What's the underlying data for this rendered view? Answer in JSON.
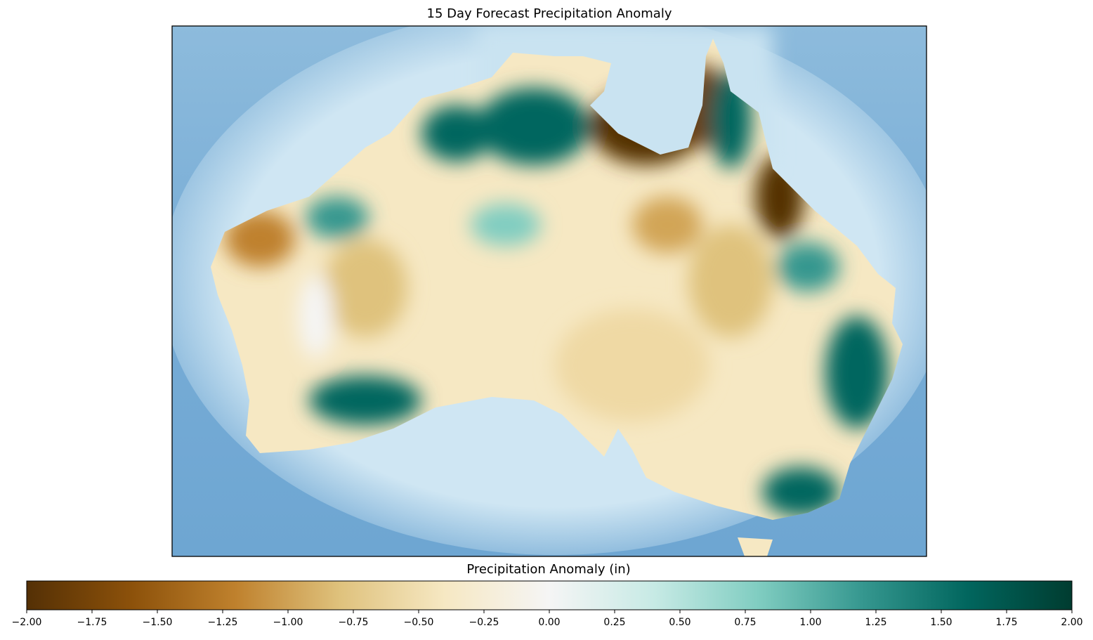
{
  "title": "15 Day Forecast Precipitation Anomaly",
  "colorbar": {
    "label": "Precipitation Anomaly (in)",
    "lim": [
      -2,
      2
    ],
    "colors": [
      "#543005",
      "#8c510a",
      "#bf812d",
      "#dfc27d",
      "#f6e8c3",
      "#f5f5f5",
      "#c7eae5",
      "#80cdc1",
      "#35978f",
      "#01665e",
      "#003c30"
    ],
    "ticks": [
      {
        "value": -2,
        "label": "−2.00"
      },
      {
        "value": -1.75,
        "label": "−1.75"
      },
      {
        "value": -1.5,
        "label": "−1.50"
      },
      {
        "value": -1.25,
        "label": "−1.25"
      },
      {
        "value": -1,
        "label": "−1.00"
      },
      {
        "value": -0.75,
        "label": "−0.75"
      },
      {
        "value": -0.5,
        "label": "−0.50"
      },
      {
        "value": -0.25,
        "label": "−0.25"
      },
      {
        "value": 0,
        "label": "0.00"
      },
      0.25,
      {
        "value": 0.5,
        "label": "0.50"
      },
      0.75,
      {
        "value": 1,
        "label": "1.00"
      },
      1.25,
      {
        "value": 1.5,
        "label": "1.50"
      },
      1.75,
      {
        "value": 2,
        "label": "2.00"
      }
    ]
  }
}
